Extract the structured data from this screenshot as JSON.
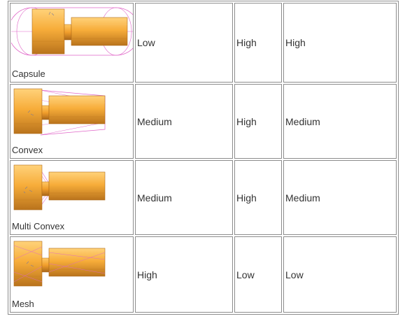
{
  "rows": [
    {
      "shape": "Capsule",
      "image_icon": "capsule-collision-render",
      "col2": "Low",
      "col3": "High",
      "col4": "High"
    },
    {
      "shape": "Convex",
      "image_icon": "convex-collision-render",
      "col2": "Medium",
      "col3": "High",
      "col4": "Medium"
    },
    {
      "shape": "Multi Convex",
      "image_icon": "multi-convex-collision-render",
      "col2": "Medium",
      "col3": "High",
      "col4": "Medium"
    },
    {
      "shape": "Mesh",
      "image_icon": "mesh-collision-render",
      "col2": "High",
      "col3": "Low",
      "col4": "Low"
    }
  ],
  "colors": {
    "body_light": "#ffcc66",
    "body_mid": "#f5a623",
    "body_dark": "#b8741a",
    "wire": "#e066c8",
    "border": "#8c8c8c",
    "text": "#333333"
  }
}
